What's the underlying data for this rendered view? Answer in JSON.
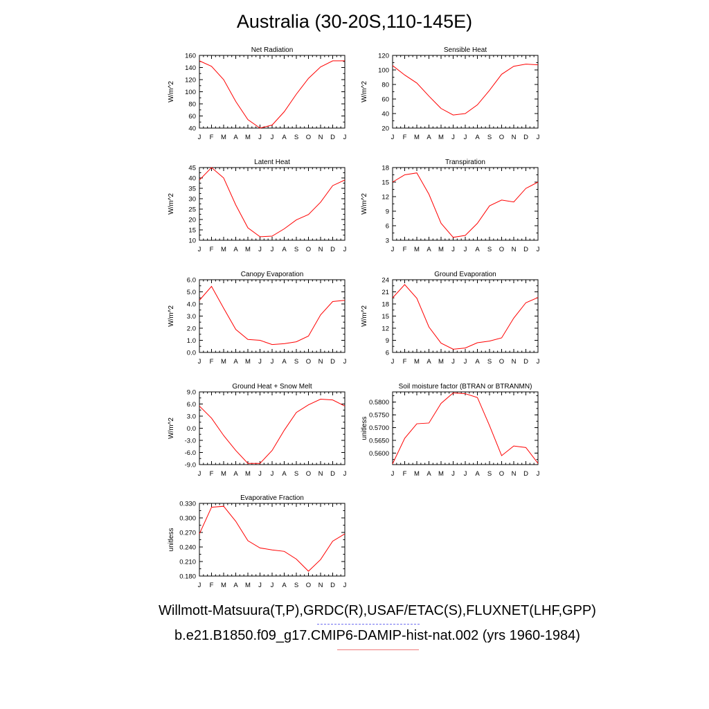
{
  "title": "Australia (30-20S,110-145E)",
  "legend": {
    "observations": "Willmott-Matsuura(T,P),GRDC(R),USAF/ETAC(S),FLUXNET(LHF,GPP)",
    "model": "b.e21.B1850.f09_g17.CMIP6-DAMIP-hist-nat.002 (yrs 1960-1984)",
    "obs_color": "#6f6ff0",
    "model_color": "#ff0000"
  },
  "chart_data": [
    {
      "type": "line",
      "title": "Net Radiation",
      "ylabel": "W/m^2",
      "x": [
        "J",
        "F",
        "M",
        "A",
        "M",
        "J",
        "J",
        "A",
        "S",
        "O",
        "N",
        "D",
        "J"
      ],
      "ylim": [
        40,
        160
      ],
      "yticks": [
        "160",
        "140",
        "120",
        "100",
        "80",
        "60",
        "40"
      ],
      "series": [
        {
          "values": [
            151,
            142,
            120,
            84,
            54,
            40,
            45,
            67,
            96,
            122,
            141,
            151,
            151
          ],
          "color": "#ff0000"
        }
      ]
    },
    {
      "type": "line",
      "title": "Sensible Heat",
      "ylabel": "W/m^2",
      "x": [
        "J",
        "F",
        "M",
        "A",
        "M",
        "J",
        "J",
        "A",
        "S",
        "O",
        "N",
        "D",
        "J"
      ],
      "ylim": [
        20,
        120
      ],
      "yticks": [
        "120",
        "100",
        "80",
        "60",
        "40",
        "20"
      ],
      "series": [
        {
          "values": [
            106,
            93,
            82,
            64,
            47,
            38,
            40,
            52,
            72,
            94,
            105,
            108,
            107
          ],
          "color": "#ff0000"
        }
      ]
    },
    {
      "type": "line",
      "title": "Latent Heat",
      "ylabel": "W/m^2",
      "x": [
        "J",
        "F",
        "M",
        "A",
        "M",
        "J",
        "J",
        "A",
        "S",
        "O",
        "N",
        "D",
        "J"
      ],
      "ylim": [
        10,
        45
      ],
      "yticks": [
        "45",
        "40",
        "35",
        "30",
        "25",
        "20",
        "15",
        "10"
      ],
      "series": [
        {
          "values": [
            39,
            45,
            40,
            27,
            16,
            11.7,
            12,
            15.5,
            19.8,
            22.4,
            28.3,
            36.3,
            39
          ],
          "color": "#ff0000"
        }
      ]
    },
    {
      "type": "line",
      "title": "Transpiration",
      "ylabel": "W/m^2",
      "x": [
        "J",
        "F",
        "M",
        "A",
        "M",
        "J",
        "J",
        "A",
        "S",
        "O",
        "N",
        "D",
        "J"
      ],
      "ylim": [
        3,
        18
      ],
      "yticks": [
        "18",
        "15",
        "12",
        "9",
        "6",
        "3"
      ],
      "series": [
        {
          "values": [
            15,
            16.5,
            16.9,
            12.5,
            6.5,
            3.6,
            4,
            6.5,
            10.1,
            11.3,
            10.9,
            13.7,
            15
          ],
          "color": "#ff0000"
        }
      ]
    },
    {
      "type": "line",
      "title": "Canopy Evaporation",
      "ylabel": "W/m^2",
      "x": [
        "J",
        "F",
        "M",
        "A",
        "M",
        "J",
        "J",
        "A",
        "S",
        "O",
        "N",
        "D",
        "J"
      ],
      "ylim": [
        0,
        6
      ],
      "yticks": [
        "6.0",
        "5.0",
        "4.0",
        "3.0",
        "2.0",
        "1.0",
        "0.0"
      ],
      "series": [
        {
          "values": [
            4.3,
            5.45,
            3.65,
            1.9,
            1.07,
            1.0,
            0.65,
            0.72,
            0.88,
            1.35,
            3.1,
            4.2,
            4.3
          ],
          "color": "#ff0000"
        }
      ]
    },
    {
      "type": "line",
      "title": "Ground Evaporation",
      "ylabel": "W/m^2",
      "x": [
        "J",
        "F",
        "M",
        "A",
        "M",
        "J",
        "J",
        "A",
        "S",
        "O",
        "N",
        "D",
        "J"
      ],
      "ylim": [
        6,
        24
      ],
      "yticks": [
        "24",
        "21",
        "18",
        "15",
        "12",
        "9",
        "6"
      ],
      "series": [
        {
          "values": [
            19.5,
            22.8,
            19.4,
            12.3,
            8.3,
            6.8,
            7.1,
            8.4,
            8.8,
            9.6,
            14.5,
            18.3,
            19.6
          ],
          "color": "#ff0000"
        }
      ]
    },
    {
      "type": "line",
      "title": "Ground Heat + Snow Melt",
      "ylabel": "W/m^2",
      "x": [
        "J",
        "F",
        "M",
        "A",
        "M",
        "J",
        "J",
        "A",
        "S",
        "O",
        "N",
        "D",
        "J"
      ],
      "ylim": [
        -9,
        9
      ],
      "yticks": [
        "9.0",
        "6.0",
        "3.0",
        "0.0",
        "-3.0",
        "-6.0",
        "-9.0"
      ],
      "series": [
        {
          "values": [
            5.5,
            2.5,
            -1.8,
            -5.5,
            -8.7,
            -8.7,
            -5.5,
            -0.5,
            3.9,
            5.8,
            7.2,
            7.0,
            5.5
          ],
          "color": "#ff0000"
        }
      ]
    },
    {
      "type": "line",
      "title": "Soil moisture factor (BTRAN or BTRANMN)",
      "ylabel": "unitless",
      "x": [
        "J",
        "F",
        "M",
        "A",
        "M",
        "J",
        "J",
        "A",
        "S",
        "O",
        "N",
        "D",
        "J"
      ],
      "ylim": [
        0.5555,
        0.584
      ],
      "yticks": [
        "0.5800",
        "0.5750",
        "0.5700",
        "0.5650",
        "0.5600"
      ],
      "series": [
        {
          "values": [
            0.5558,
            0.5658,
            0.5715,
            0.5718,
            0.5795,
            0.5836,
            0.5833,
            0.5818,
            0.5708,
            0.559,
            0.5628,
            0.5622,
            0.556
          ],
          "color": "#ff0000"
        }
      ]
    },
    {
      "type": "line",
      "title": "Evaporative Fraction",
      "ylabel": "unitless",
      "x": [
        "J",
        "F",
        "M",
        "A",
        "M",
        "J",
        "J",
        "A",
        "S",
        "O",
        "N",
        "D",
        "J"
      ],
      "ylim": [
        0.18,
        0.33
      ],
      "yticks": [
        "0.330",
        "0.300",
        "0.270",
        "0.240",
        "0.210",
        "0.180"
      ],
      "series": [
        {
          "values": [
            0.267,
            0.322,
            0.324,
            0.293,
            0.253,
            0.238,
            0.234,
            0.231,
            0.215,
            0.19,
            0.214,
            0.252,
            0.267
          ],
          "color": "#ff0000"
        }
      ]
    }
  ]
}
